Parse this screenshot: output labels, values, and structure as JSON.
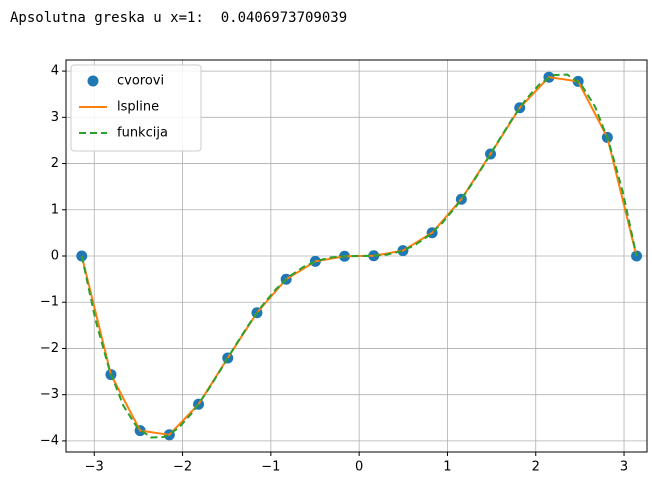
{
  "chart_data": {
    "type": "line",
    "title": "Apsolutna greska u x=1:  0.0406973709039",
    "xlim": [
      -3.32,
      3.26
    ],
    "ylim": [
      -4.24,
      4.24
    ],
    "xticks": [
      {
        "value": -3,
        "label": "−3"
      },
      {
        "value": -2,
        "label": "−2"
      },
      {
        "value": -1,
        "label": "−1"
      },
      0,
      1,
      2,
      3
    ],
    "yticks": [
      {
        "value": -4,
        "label": "−4"
      },
      {
        "value": -3,
        "label": "−3"
      },
      {
        "value": -2,
        "label": "−2"
      },
      {
        "value": -1,
        "label": "−1"
      },
      0,
      1,
      2,
      3,
      4
    ],
    "grid": true,
    "legend": "upper left",
    "series": [
      {
        "name": "cvorovi",
        "kind": "markers",
        "color": "#1f77b4",
        "x": [
          -3.1416,
          -2.8109,
          -2.4802,
          -2.1495,
          -1.8188,
          -1.4881,
          -1.1574,
          -0.8267,
          -0.496,
          -0.1653,
          0.1653,
          0.496,
          0.8267,
          1.1574,
          1.4881,
          1.8188,
          2.1495,
          2.4802,
          2.8109,
          3.1416
        ],
        "values": [
          0,
          -2.565,
          -3.778,
          -3.868,
          -3.207,
          -2.207,
          -1.227,
          -0.503,
          -0.117,
          -0.0045,
          0.0045,
          0.117,
          0.503,
          1.227,
          2.207,
          3.207,
          3.868,
          3.778,
          2.565,
          0
        ]
      },
      {
        "name": "lspline",
        "kind": "solid",
        "color": "#ff7f0e",
        "x": [
          -3.1416,
          -2.8109,
          -2.4802,
          -2.1495,
          -1.8188,
          -1.4881,
          -1.1574,
          -0.8267,
          -0.496,
          -0.1653,
          0.1653,
          0.496,
          0.8267,
          1.1574,
          1.4881,
          1.8188,
          2.1495,
          2.4802,
          2.8109,
          3.1416
        ],
        "values": [
          0,
          -2.565,
          -3.778,
          -3.868,
          -3.207,
          -2.207,
          -1.227,
          -0.503,
          -0.117,
          -0.0045,
          0.0045,
          0.117,
          0.503,
          1.227,
          2.207,
          3.207,
          3.868,
          3.778,
          2.565,
          0
        ]
      },
      {
        "name": "funkcija",
        "kind": "dashed",
        "color": "#2ca02c",
        "x": [
          -3.1416,
          -2.9845,
          -2.8274,
          -2.6704,
          -2.5133,
          -2.3562,
          -2.1991,
          -2.042,
          -1.885,
          -1.7279,
          -1.5708,
          -1.4137,
          -1.2566,
          -1.0996,
          -0.9425,
          -0.7854,
          -0.6283,
          -0.4712,
          -0.3142,
          -0.1571,
          0,
          0.1571,
          0.3142,
          0.4712,
          0.6283,
          0.7854,
          0.9425,
          1.0996,
          1.2566,
          1.4137,
          1.5708,
          1.7279,
          1.885,
          2.042,
          2.1991,
          2.3562,
          2.5133,
          2.6704,
          2.8274,
          2.9845,
          3.1416
        ],
        "values": [
          0,
          -1.3934,
          -2.4704,
          -3.2373,
          -3.7128,
          -3.9256,
          -3.9125,
          -3.7154,
          -3.3792,
          -2.9488,
          -2.4674,
          -1.974,
          -1.5018,
          -1.0773,
          -0.7186,
          -0.4362,
          -0.232,
          -0.1008,
          -0.0305,
          -0.00386,
          0,
          0.00386,
          0.0305,
          0.1008,
          0.232,
          0.4362,
          0.7186,
          1.0773,
          1.5018,
          1.974,
          2.4674,
          2.9488,
          3.3792,
          3.7154,
          3.9125,
          3.9256,
          3.7128,
          3.2373,
          2.4704,
          1.3934,
          0
        ]
      }
    ]
  }
}
